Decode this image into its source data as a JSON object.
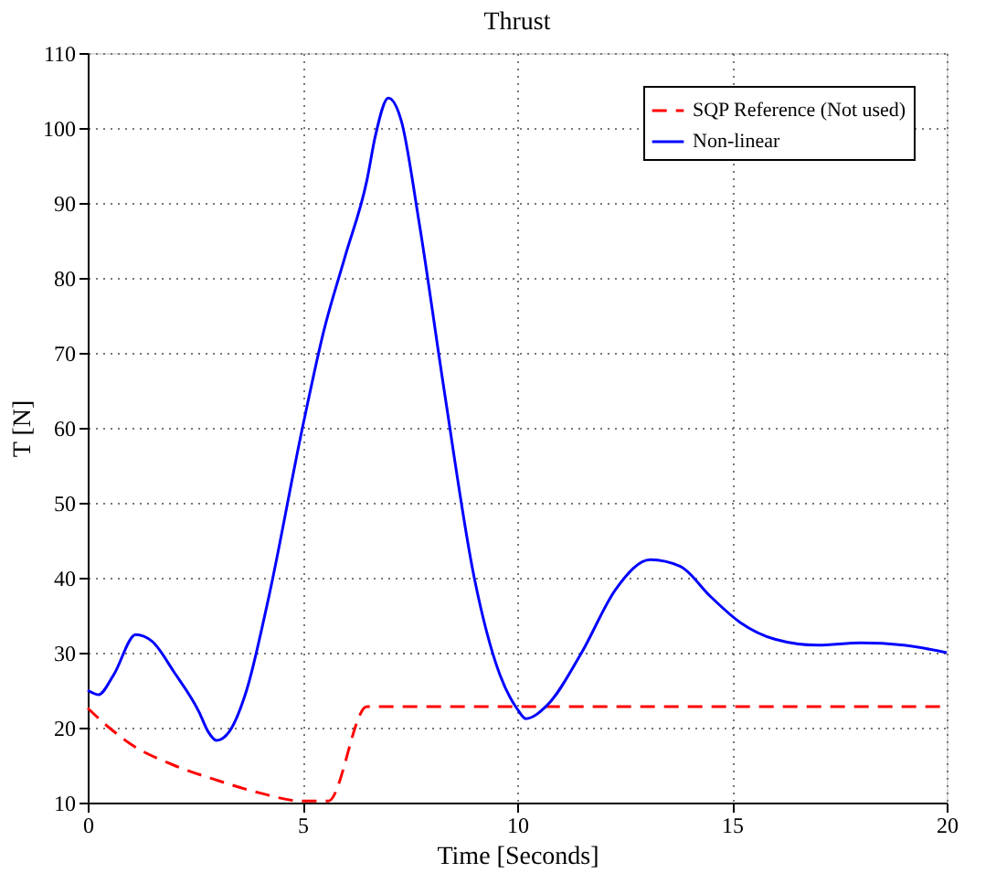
{
  "chart_data": {
    "type": "line",
    "title": "Thrust",
    "xlabel": "Time [Seconds]",
    "ylabel": "T [N]",
    "xlim": [
      0,
      20
    ],
    "xticks": [
      0,
      5,
      10,
      15,
      20
    ],
    "ylim": [
      10,
      110
    ],
    "yticks": [
      10,
      20,
      30,
      40,
      50,
      60,
      70,
      80,
      90,
      100,
      110
    ],
    "grid": true,
    "legend": "top right",
    "series": [
      {
        "name": "SQP Reference (Not used)",
        "color": "#ff0000",
        "line_style": "dashed",
        "x": [
          0,
          0.5,
          1,
          2,
          3,
          4,
          5,
          5.6,
          6.5,
          20
        ],
        "values": [
          22.6,
          20,
          17.8,
          15,
          13,
          11.3,
          10.2,
          10.2,
          22.8,
          22.8
        ]
      },
      {
        "name": "Non-linear",
        "color": "#0000ff",
        "line_style": "solid",
        "x": [
          0,
          0.25,
          0.6,
          1.12,
          1.5,
          2,
          2.6,
          2.8,
          3,
          3.3,
          3.7,
          4.2,
          5,
          5.5,
          6,
          6.5,
          6.7,
          7,
          7.3,
          7.7,
          8.3,
          9,
          9.6,
          10,
          10.2,
          10.7,
          11.5,
          12.3,
          13.1,
          13.8,
          14.5,
          15.2,
          16,
          17,
          18,
          19,
          20
        ],
        "values": [
          25,
          24.4,
          27,
          32.4,
          31.5,
          27.5,
          22,
          19.5,
          18.3,
          19.5,
          25,
          37,
          60,
          73,
          83,
          93,
          99,
          104,
          101,
          88,
          65,
          40,
          27,
          22.5,
          21.2,
          23,
          30,
          38.5,
          42.4,
          41.5,
          37.5,
          34,
          31.8,
          31,
          31.3,
          31,
          30
        ]
      }
    ]
  }
}
